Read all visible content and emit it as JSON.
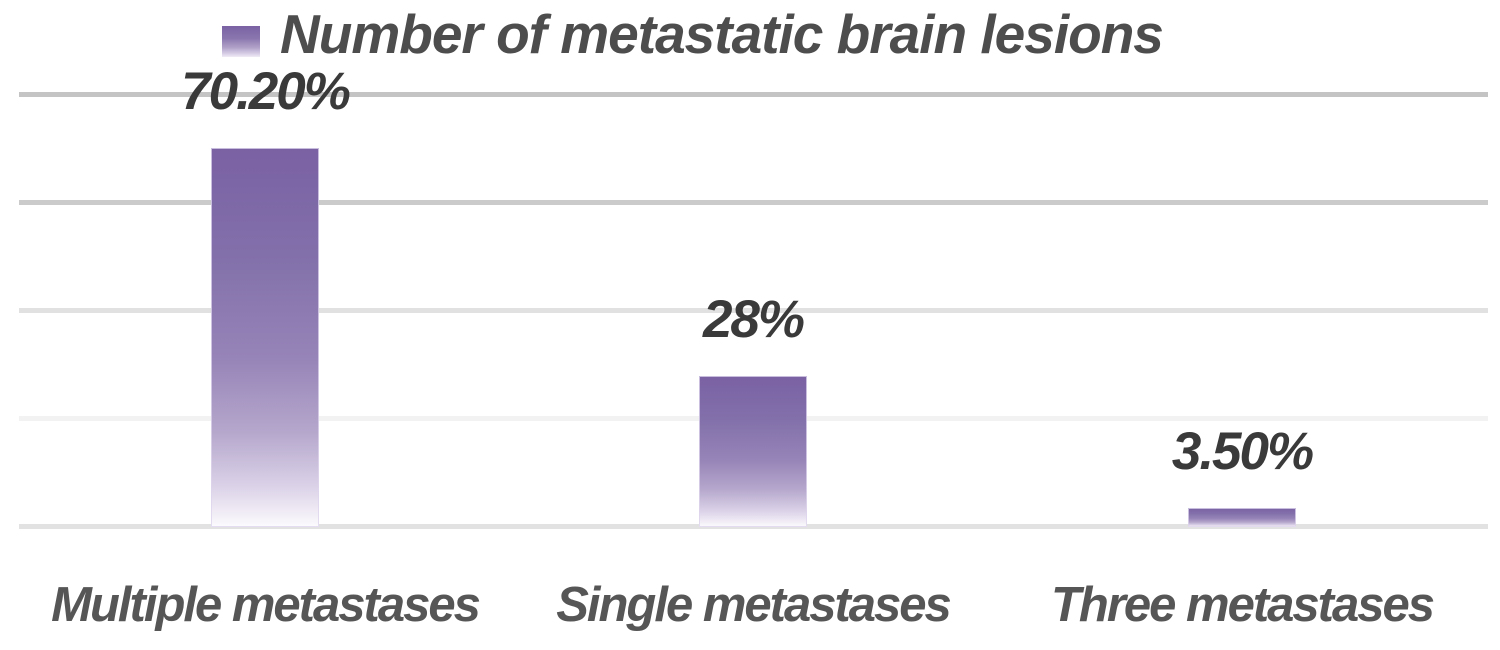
{
  "chart_data": {
    "type": "bar",
    "title": "Number of metastatic brain lesions",
    "categories": [
      "Multiple metastases",
      "Single metastases",
      "Three metastases"
    ],
    "values": [
      70.2,
      28,
      3.5
    ],
    "value_labels": [
      "70.20%",
      "28%",
      "3.50%"
    ],
    "xlabel": "",
    "ylabel": "",
    "ylim": [
      0,
      80
    ],
    "gridline_step": 20,
    "grid": true,
    "axis_tick_labels_visible": false,
    "legend_position": "top",
    "legend_entries": [
      "Number of metastatic brain lesions"
    ],
    "series": [
      {
        "name": "Number of metastatic brain lesions",
        "values": [
          70.2,
          28,
          3.5
        ]
      }
    ]
  },
  "legend": {
    "label": "Number of metastatic brain lesions",
    "marker": "gradient-square-icon"
  },
  "colors": {
    "bar_purple_top": "#7A61A3",
    "bar_fade_bottom": "#FCFBFD",
    "legend_title_text": "#4D4D4D",
    "value_label_text": "#3A3A3A",
    "category_label_text": "#565656",
    "gridline_dark": "#C4C4C4",
    "gridline_light": "#F2F2F2",
    "baseline": "#E2E2E2",
    "background": "#FFFFFF"
  }
}
